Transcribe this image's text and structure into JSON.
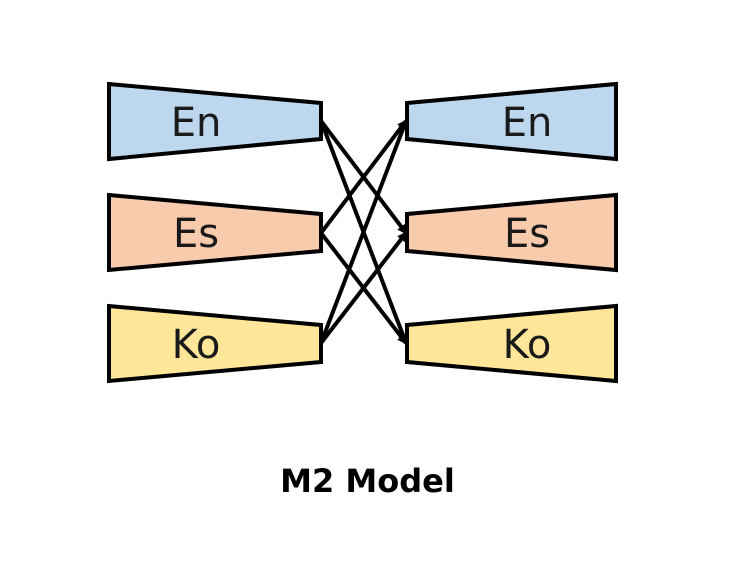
{
  "caption": "M2 Model",
  "encoders": [
    {
      "label": "En",
      "color": "#BDD7EE"
    },
    {
      "label": "Es",
      "color": "#F8CBAD"
    },
    {
      "label": "Ko",
      "color": "#FFE699"
    }
  ],
  "decoders": [
    {
      "label": "En",
      "color": "#BDD7EE"
    },
    {
      "label": "Es",
      "color": "#F8CBAD"
    },
    {
      "label": "Ko",
      "color": "#FFE699"
    }
  ],
  "stroke_color": "#000000"
}
